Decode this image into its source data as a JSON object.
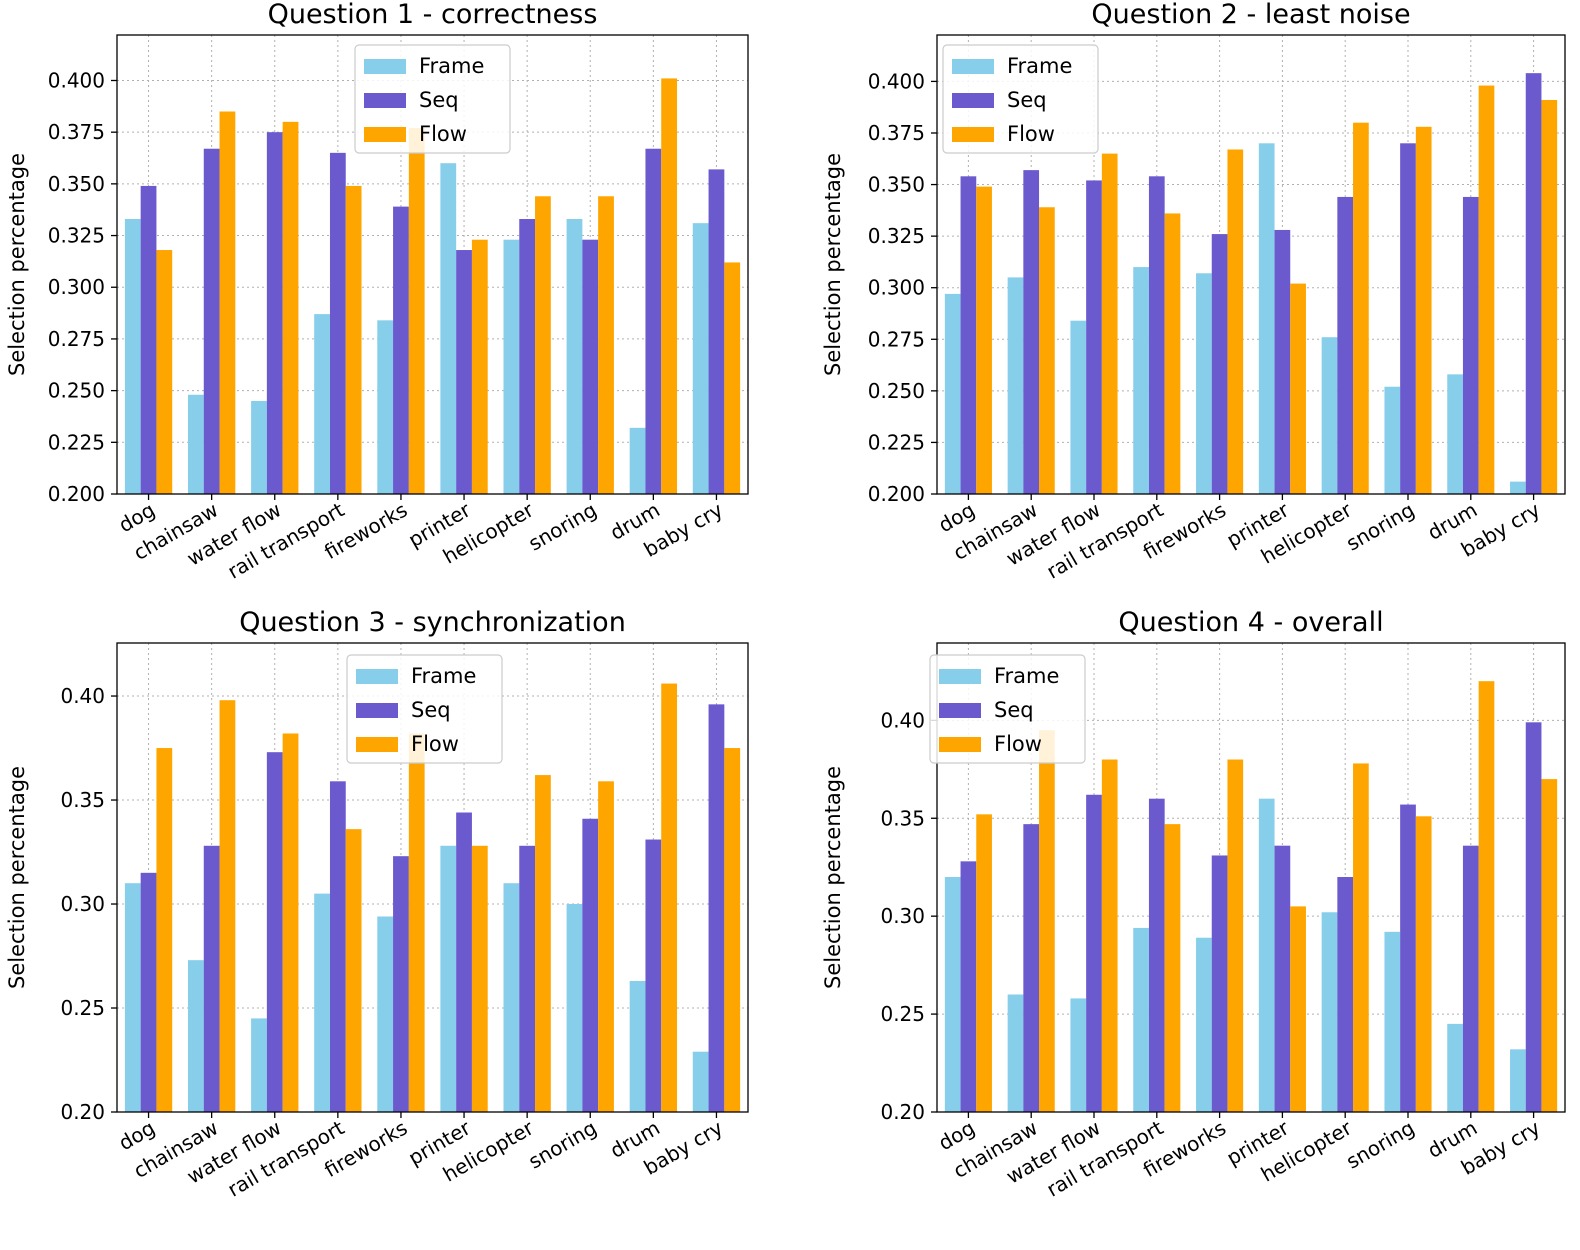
{
  "figure": {
    "series_names": [
      "Frame",
      "Seq",
      "Flow"
    ],
    "colors": {
      "Frame": "#87ceeb",
      "Seq": "#6a5acd",
      "Flow": "#ffa500"
    }
  },
  "chart_data": [
    {
      "type": "bar",
      "title": "Question 1 - correctness",
      "xlabel": "",
      "ylabel": "Selection percentage",
      "ylim": [
        0.2,
        0.422
      ],
      "yticks": [
        "0.200",
        "0.225",
        "0.250",
        "0.275",
        "0.300",
        "0.325",
        "0.350",
        "0.375",
        "0.400"
      ],
      "categories": [
        "dog",
        "chainsaw",
        "water flow",
        "rail transport",
        "fireworks",
        "printer",
        "helicopter",
        "snoring",
        "drum",
        "baby cry"
      ],
      "legend": "top-center",
      "grid": true,
      "series": [
        {
          "name": "Frame",
          "values": [
            0.333,
            0.248,
            0.245,
            0.287,
            0.284,
            0.36,
            0.323,
            0.333,
            0.232,
            0.331
          ]
        },
        {
          "name": "Seq",
          "values": [
            0.349,
            0.367,
            0.375,
            0.365,
            0.339,
            0.318,
            0.333,
            0.323,
            0.367,
            0.357
          ]
        },
        {
          "name": "Flow",
          "values": [
            0.318,
            0.385,
            0.38,
            0.349,
            0.377,
            0.323,
            0.344,
            0.344,
            0.401,
            0.312
          ]
        }
      ]
    },
    {
      "type": "bar",
      "title": "Question 2 - least noise",
      "xlabel": "",
      "ylabel": "Selection percentage",
      "ylim": [
        0.2,
        0.4225
      ],
      "yticks": [
        "0.200",
        "0.225",
        "0.250",
        "0.275",
        "0.300",
        "0.325",
        "0.350",
        "0.375",
        "0.400"
      ],
      "categories": [
        "dog",
        "chainsaw",
        "water flow",
        "rail transport",
        "fireworks",
        "printer",
        "helicopter",
        "snoring",
        "drum",
        "baby cry"
      ],
      "legend": "top-left",
      "grid": true,
      "series": [
        {
          "name": "Frame",
          "values": [
            0.297,
            0.305,
            0.284,
            0.31,
            0.307,
            0.37,
            0.276,
            0.252,
            0.258,
            0.206
          ]
        },
        {
          "name": "Seq",
          "values": [
            0.354,
            0.357,
            0.352,
            0.354,
            0.326,
            0.328,
            0.344,
            0.37,
            0.344,
            0.404
          ]
        },
        {
          "name": "Flow",
          "values": [
            0.349,
            0.339,
            0.365,
            0.336,
            0.367,
            0.302,
            0.38,
            0.378,
            0.398,
            0.391
          ]
        }
      ]
    },
    {
      "type": "bar",
      "title": "Question 3 - synchronization",
      "xlabel": "",
      "ylabel": "Selection percentage",
      "ylim": [
        0.2,
        0.4255
      ],
      "yticks": [
        "0.20",
        "0.25",
        "0.30",
        "0.35",
        "0.40"
      ],
      "categories": [
        "dog",
        "chainsaw",
        "water flow",
        "rail transport",
        "fireworks",
        "printer",
        "helicopter",
        "snoring",
        "drum",
        "baby cry"
      ],
      "legend": "top-center",
      "grid": true,
      "series": [
        {
          "name": "Frame",
          "values": [
            0.31,
            0.273,
            0.245,
            0.305,
            0.294,
            0.328,
            0.31,
            0.3,
            0.263,
            0.229
          ]
        },
        {
          "name": "Seq",
          "values": [
            0.315,
            0.328,
            0.373,
            0.359,
            0.323,
            0.344,
            0.328,
            0.341,
            0.331,
            0.396
          ]
        },
        {
          "name": "Flow",
          "values": [
            0.375,
            0.398,
            0.382,
            0.336,
            0.382,
            0.328,
            0.362,
            0.359,
            0.406,
            0.375
          ]
        }
      ]
    },
    {
      "type": "bar",
      "title": "Question 4 - overall",
      "xlabel": "",
      "ylabel": "Selection percentage",
      "ylim": [
        0.2,
        0.4395
      ],
      "yticks": [
        "0.20",
        "0.25",
        "0.30",
        "0.35",
        "0.40"
      ],
      "categories": [
        "dog",
        "chainsaw",
        "water flow",
        "rail transport",
        "fireworks",
        "printer",
        "helicopter",
        "snoring",
        "drum",
        "baby cry"
      ],
      "legend": "top-left",
      "grid": true,
      "series": [
        {
          "name": "Frame",
          "values": [
            0.32,
            0.26,
            0.258,
            0.294,
            0.289,
            0.36,
            0.302,
            0.292,
            0.245,
            0.232
          ]
        },
        {
          "name": "Seq",
          "values": [
            0.328,
            0.347,
            0.362,
            0.36,
            0.331,
            0.336,
            0.32,
            0.357,
            0.336,
            0.399
          ]
        },
        {
          "name": "Flow",
          "values": [
            0.352,
            0.395,
            0.38,
            0.347,
            0.38,
            0.305,
            0.378,
            0.351,
            0.42,
            0.37
          ]
        }
      ]
    }
  ]
}
